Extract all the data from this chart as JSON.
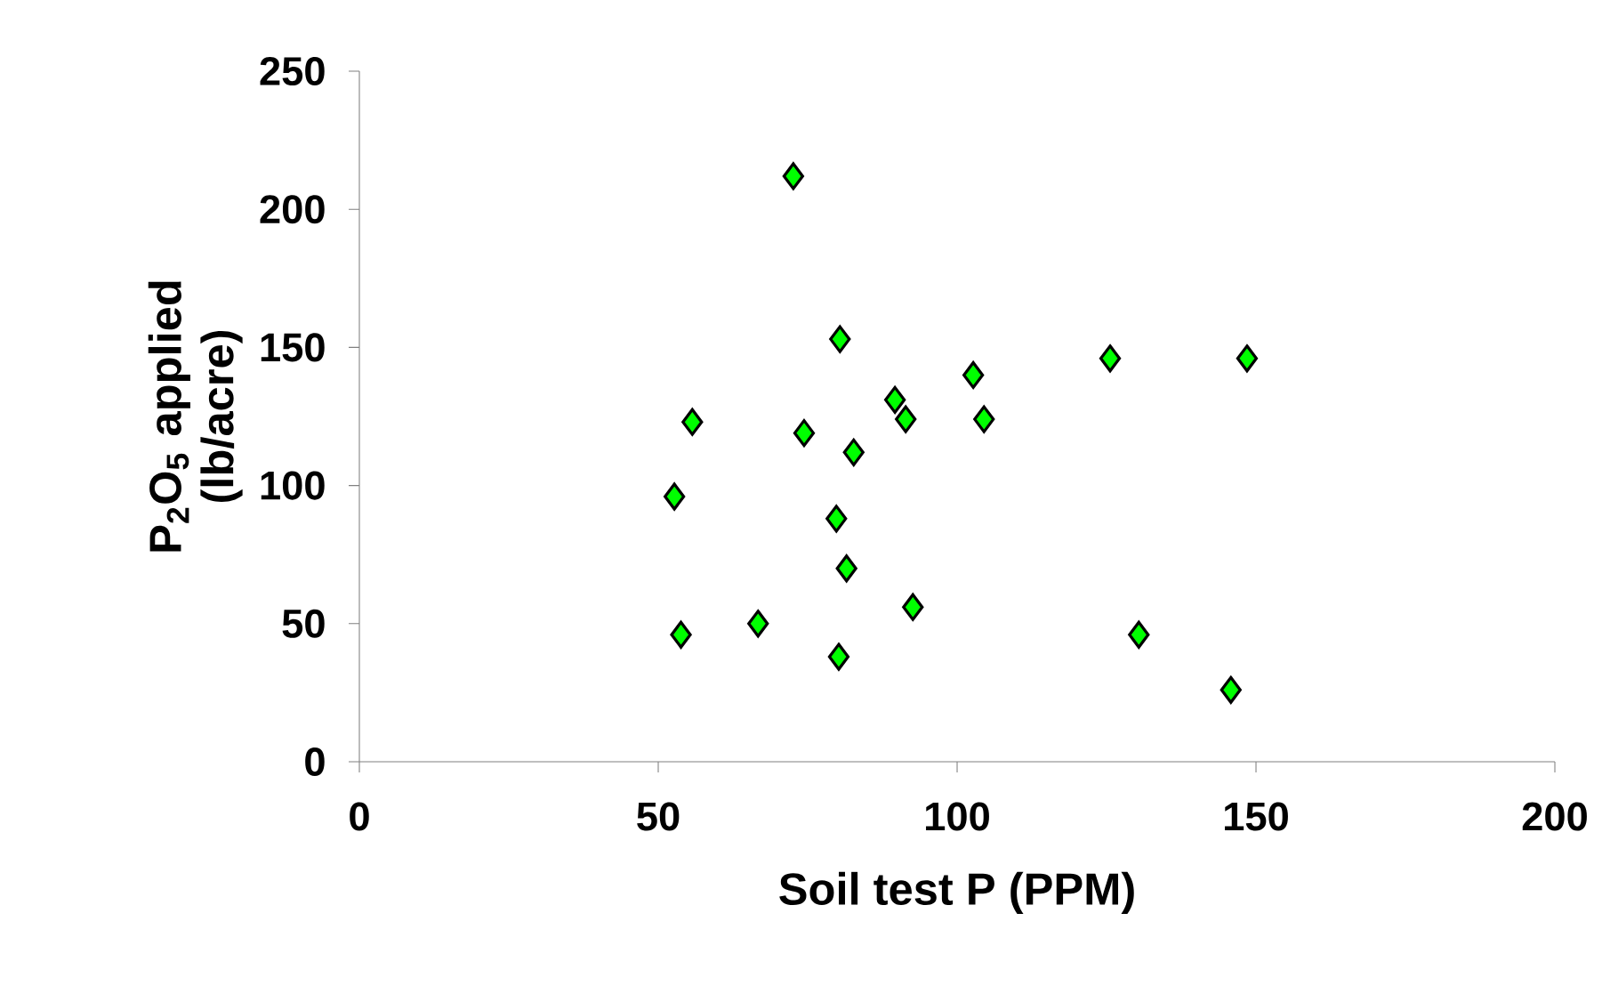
{
  "chart_data": {
    "type": "scatter",
    "xlabel": "Soil test P (PPM)",
    "ylabel": "P$_{2}$O$_{5}$ applied (lb/acre)",
    "xlim": [
      0,
      200
    ],
    "xticks": [
      0,
      50,
      100,
      150,
      200
    ],
    "ylim": [
      0,
      250
    ],
    "yticks": [
      0,
      50,
      100,
      150,
      200,
      250
    ],
    "marker": "diamond",
    "series": [
      {
        "color": "#00ff00",
        "x": [
          72.6,
          80.4,
          55.7,
          74.4,
          82.7,
          52.7,
          89.6,
          91.4,
          102.7,
          104.5,
          79.8,
          81.5,
          92.6,
          53.8,
          66.7,
          80.2,
          125.6,
          148.5,
          130.4,
          145.8
        ],
        "values": [
          212,
          153,
          123,
          119,
          112,
          96,
          131,
          124,
          140,
          124,
          88,
          70,
          56,
          46,
          50,
          38,
          146,
          146,
          46,
          26
        ]
      }
    ]
  }
}
